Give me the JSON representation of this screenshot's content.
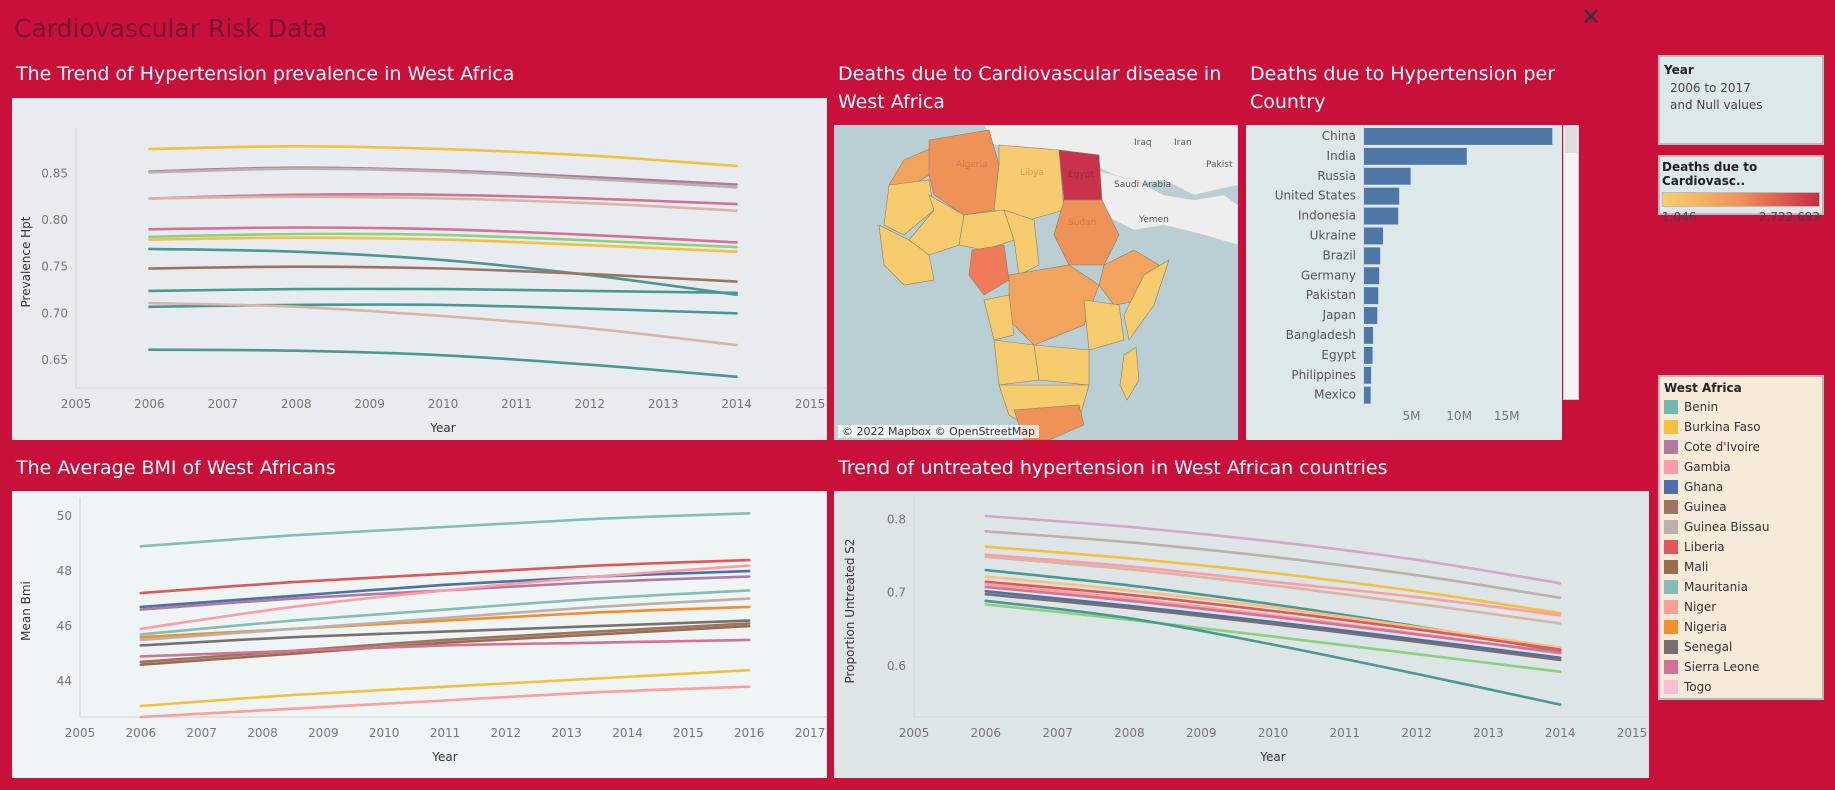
{
  "dashboard": {
    "title": "Cardiovascular Risk Data",
    "close_icon": "close-icon"
  },
  "titles": {
    "hypertension_trend": "The Trend of Hypertension prevalence in West Africa",
    "cvd_map_line1": "Deaths due to Cardiovascular disease in",
    "cvd_map_line2": "West Africa",
    "hpt_deaths_line1": "Deaths due to Hypertension per",
    "hpt_deaths_line2": "Country",
    "bmi": "The Average BMI of West Africans",
    "untreated": "Trend of untreated hypertension in West African countries"
  },
  "year_filter": {
    "title": "Year",
    "line1": "2006 to 2017",
    "line2": "and Null values"
  },
  "color_legend": {
    "title": "Deaths due to Cardiovasc..",
    "min": "1,046",
    "max": "2,722,693",
    "colors": [
      "#f8d06a",
      "#cc2a45"
    ]
  },
  "map": {
    "credit": "© 2022 Mapbox © OpenStreetMap",
    "labels": [
      "Iraq",
      "Iran",
      "Saudi Arabia",
      "Yemen",
      "Algeria",
      "Libya",
      "Egypt",
      "Sudan",
      "Pakist"
    ]
  },
  "west_africa_legend": {
    "title": "West Africa",
    "items": [
      {
        "name": "Benin",
        "color": "#6fb8b0"
      },
      {
        "name": "Burkina Faso",
        "color": "#f2c13f"
      },
      {
        "name": "Cote d'Ivoire",
        "color": "#b07aa1"
      },
      {
        "name": "Gambia",
        "color": "#ff9da7"
      },
      {
        "name": "Ghana",
        "color": "#4e6fa8"
      },
      {
        "name": "Guinea",
        "color": "#9c755f"
      },
      {
        "name": "Guinea Bissau",
        "color": "#bab0ac"
      },
      {
        "name": "Liberia",
        "color": "#e15759"
      },
      {
        "name": "Mali",
        "color": "#9c6b4e"
      },
      {
        "name": "Mauritania",
        "color": "#86bcb6"
      },
      {
        "name": "Niger",
        "color": "#ff9d9a"
      },
      {
        "name": "Nigeria",
        "color": "#f28e2b"
      },
      {
        "name": "Senegal",
        "color": "#79706e"
      },
      {
        "name": "Sierra Leone",
        "color": "#d37295"
      },
      {
        "name": "Togo",
        "color": "#fabfd2"
      }
    ]
  },
  "chart_data": [
    {
      "id": "hypertension",
      "type": "line",
      "title": "The Trend of Hypertension prevalence in West Africa",
      "xlabel": "Year",
      "ylabel": "Prevalence Hpt",
      "xlim": [
        2005,
        2015
      ],
      "ylim": [
        0.62,
        0.89
      ],
      "xticks": [
        2005,
        2006,
        2007,
        2008,
        2009,
        2010,
        2011,
        2012,
        2013,
        2014,
        2015
      ],
      "yticks": [
        0.65,
        0.7,
        0.75,
        0.8,
        0.85
      ],
      "x": [
        2006,
        2008,
        2010,
        2012,
        2014
      ],
      "series": [
        {
          "color": "#f2c13f",
          "values": [
            0.876,
            0.879,
            0.876,
            0.869,
            0.858
          ]
        },
        {
          "color": "#b07aa1",
          "values": [
            0.852,
            0.856,
            0.853,
            0.846,
            0.838
          ]
        },
        {
          "color": "#bab0ac",
          "values": [
            0.851,
            0.855,
            0.852,
            0.844,
            0.835
          ]
        },
        {
          "color": "#d37295",
          "values": [
            0.823,
            0.827,
            0.827,
            0.823,
            0.817
          ]
        },
        {
          "color": "#d8b5a5",
          "values": [
            0.823,
            0.825,
            0.823,
            0.818,
            0.81
          ]
        },
        {
          "color": "#d37295",
          "values": [
            0.79,
            0.792,
            0.79,
            0.784,
            0.776
          ]
        },
        {
          "color": "#8cd17d",
          "values": [
            0.782,
            0.785,
            0.784,
            0.778,
            0.771
          ]
        },
        {
          "color": "#f2c13f",
          "values": [
            0.779,
            0.781,
            0.779,
            0.773,
            0.766
          ]
        },
        {
          "color": "#499894",
          "values": [
            0.769,
            0.766,
            0.757,
            0.741,
            0.72
          ]
        },
        {
          "color": "#9c755f",
          "values": [
            0.748,
            0.75,
            0.748,
            0.742,
            0.734
          ]
        },
        {
          "color": "#499894",
          "values": [
            0.724,
            0.726,
            0.726,
            0.724,
            0.722
          ]
        },
        {
          "color": "#499894",
          "values": [
            0.707,
            0.709,
            0.709,
            0.705,
            0.7
          ]
        },
        {
          "color": "#d8b5a5",
          "values": [
            0.711,
            0.707,
            0.697,
            0.684,
            0.666
          ]
        },
        {
          "color": "#499894",
          "values": [
            0.661,
            0.66,
            0.655,
            0.645,
            0.632
          ]
        }
      ]
    },
    {
      "id": "bmi",
      "type": "line",
      "title": "The Average BMI of West Africans",
      "xlabel": "Year",
      "ylabel": "Mean Bmi",
      "xlim": [
        2005,
        2017
      ],
      "ylim": [
        42.7,
        50.4
      ],
      "xticks": [
        2005,
        2006,
        2007,
        2008,
        2009,
        2010,
        2011,
        2012,
        2013,
        2014,
        2015,
        2016,
        2017
      ],
      "yticks": [
        44,
        46,
        48,
        50
      ],
      "x": [
        2006,
        2008.5,
        2011,
        2013.5,
        2016
      ],
      "series": [
        {
          "color": "#86bcb6",
          "values": [
            48.9,
            49.3,
            49.6,
            49.9,
            50.1
          ]
        },
        {
          "color": "#e15759",
          "values": [
            47.2,
            47.6,
            47.9,
            48.2,
            48.4
          ]
        },
        {
          "color": "#4e6fa8",
          "values": [
            46.7,
            47.1,
            47.5,
            47.8,
            48.0
          ]
        },
        {
          "color": "#b07aa1",
          "values": [
            46.6,
            47.0,
            47.3,
            47.6,
            47.8
          ]
        },
        {
          "color": "#ff9da7",
          "values": [
            45.9,
            46.7,
            47.3,
            47.8,
            48.2
          ]
        },
        {
          "color": "#86bcb6",
          "values": [
            45.7,
            46.2,
            46.6,
            47.0,
            47.3
          ]
        },
        {
          "color": "#f28e2b",
          "values": [
            45.6,
            45.9,
            46.2,
            46.5,
            46.7
          ]
        },
        {
          "color": "#bab0ac",
          "values": [
            45.5,
            45.9,
            46.3,
            46.7,
            47.0
          ]
        },
        {
          "color": "#79706e",
          "values": [
            45.3,
            45.6,
            45.8,
            46.0,
            46.2
          ]
        },
        {
          "color": "#9c755f",
          "values": [
            44.7,
            45.1,
            45.5,
            45.8,
            46.1
          ]
        },
        {
          "color": "#9c6b4e",
          "values": [
            44.6,
            45.0,
            45.4,
            45.7,
            46.0
          ]
        },
        {
          "color": "#d37295",
          "values": [
            44.9,
            45.1,
            45.3,
            45.4,
            45.5
          ]
        },
        {
          "color": "#f2c13f",
          "values": [
            43.1,
            43.5,
            43.8,
            44.1,
            44.4
          ]
        },
        {
          "color": "#ff9d9a",
          "values": [
            42.7,
            43.0,
            43.3,
            43.6,
            43.8
          ]
        }
      ]
    },
    {
      "id": "untreated",
      "type": "line",
      "title": "Trend of untreated hypertension in West African countries",
      "xlabel": "Year",
      "ylabel": "Proportion Untreated S2",
      "xlim": [
        2005,
        2015
      ],
      "ylim": [
        0.53,
        0.82
      ],
      "xticks": [
        2005,
        2006,
        2007,
        2008,
        2009,
        2010,
        2011,
        2012,
        2013,
        2014,
        2015
      ],
      "yticks": [
        0.6,
        0.7,
        0.8
      ],
      "x": [
        2006,
        2008,
        2010,
        2012,
        2014
      ],
      "series": [
        {
          "color": "#d4a6c8",
          "values": [
            0.805,
            0.79,
            0.77,
            0.745,
            0.713
          ]
        },
        {
          "color": "#bab0ac",
          "values": [
            0.784,
            0.769,
            0.749,
            0.724,
            0.693
          ]
        },
        {
          "color": "#f2c13f",
          "values": [
            0.763,
            0.747,
            0.727,
            0.702,
            0.672
          ]
        },
        {
          "color": "#ff9da7",
          "values": [
            0.752,
            0.736,
            0.715,
            0.694,
            0.669
          ]
        },
        {
          "color": "#d8b5a5",
          "values": [
            0.749,
            0.732,
            0.71,
            0.685,
            0.658
          ]
        },
        {
          "color": "#499894",
          "values": [
            0.731,
            0.71,
            0.684,
            0.654,
            0.62
          ]
        },
        {
          "color": "#ffbe7d",
          "values": [
            0.722,
            0.703,
            0.68,
            0.653,
            0.625
          ]
        },
        {
          "color": "#e15759",
          "values": [
            0.715,
            0.697,
            0.675,
            0.65,
            0.622
          ]
        },
        {
          "color": "#ff9d9a",
          "values": [
            0.712,
            0.692,
            0.669,
            0.644,
            0.617
          ]
        },
        {
          "color": "#d37295",
          "values": [
            0.708,
            0.689,
            0.667,
            0.643,
            0.618
          ]
        },
        {
          "color": "#4e6fa8",
          "values": [
            0.702,
            0.682,
            0.66,
            0.636,
            0.611
          ]
        },
        {
          "color": "#79706e",
          "values": [
            0.698,
            0.679,
            0.657,
            0.633,
            0.608
          ]
        },
        {
          "color": "#8cd17d",
          "values": [
            0.684,
            0.663,
            0.64,
            0.616,
            0.592
          ]
        },
        {
          "color": "#499894",
          "values": [
            0.689,
            0.665,
            0.629,
            0.589,
            0.547
          ]
        }
      ]
    },
    {
      "id": "hpt_deaths",
      "type": "bar",
      "title": "Deaths due to Hypertension per Country",
      "orientation": "horizontal",
      "categories": [
        "China",
        "India",
        "Russia",
        "United States",
        "Indonesia",
        "Ukraine",
        "Brazil",
        "Germany",
        "Pakistan",
        "Japan",
        "Bangladesh",
        "Egypt",
        "Philippines",
        "Mexico"
      ],
      "values": [
        19800000,
        10800000,
        4900000,
        3700000,
        3600000,
        2000000,
        1700000,
        1600000,
        1500000,
        1400000,
        950000,
        900000,
        750000,
        700000
      ],
      "xticks": [
        5000000,
        10000000,
        15000000
      ],
      "xtick_labels": [
        "5M",
        "10M",
        "15M"
      ],
      "xlim": [
        0,
        20500000
      ],
      "color": "#4e79a7"
    }
  ]
}
